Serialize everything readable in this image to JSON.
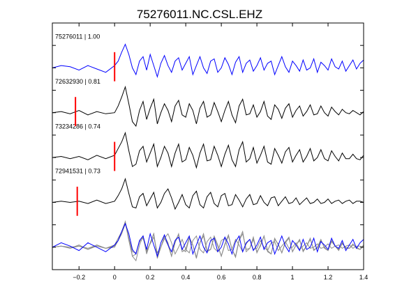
{
  "chart_data": {
    "type": "line",
    "title": "75276011.NC.CSL.EHZ",
    "xlabel": "",
    "ylabel": "",
    "xlim": [
      -0.35,
      1.4
    ],
    "ylim": [
      0,
      11
    ],
    "x_ticks": [
      -0.2,
      0,
      0.2,
      0.4,
      0.6,
      0.8,
      1,
      1.2,
      1.4
    ],
    "x_tick_labels": [
      "−0.2",
      "0",
      "0.2",
      "0.4",
      "0.6",
      "0.8",
      "1",
      "1.2",
      "1.4"
    ],
    "y_ticks": [
      1,
      2,
      3,
      4,
      5,
      6,
      7,
      8,
      9,
      10
    ],
    "grid": false,
    "colors": {
      "reference": "#0000ff",
      "match": "#000000",
      "stack": "#8c8c8c",
      "pick": "#ff0000"
    },
    "series": [
      {
        "label": "75276011 | 1.00",
        "baseline": 9,
        "pick_x": 0.0,
        "x": [
          -0.35,
          -0.3,
          -0.25,
          -0.2,
          -0.15,
          -0.1,
          -0.05,
          0,
          0.02,
          0.04,
          0.06,
          0.08,
          0.1,
          0.12,
          0.14,
          0.16,
          0.18,
          0.2,
          0.22,
          0.24,
          0.26,
          0.28,
          0.3,
          0.32,
          0.34,
          0.36,
          0.38,
          0.4,
          0.42,
          0.44,
          0.46,
          0.48,
          0.5,
          0.52,
          0.54,
          0.56,
          0.58,
          0.6,
          0.62,
          0.64,
          0.66,
          0.68,
          0.7,
          0.72,
          0.74,
          0.76,
          0.78,
          0.8,
          0.82,
          0.84,
          0.86,
          0.88,
          0.9,
          0.92,
          0.94,
          0.96,
          0.98,
          1,
          1.02,
          1.04,
          1.06,
          1.08,
          1.1,
          1.12,
          1.14,
          1.16,
          1.18,
          1.2,
          1.22,
          1.24,
          1.26,
          1.28,
          1.3,
          1.32,
          1.34,
          1.36,
          1.38,
          1.4
        ],
        "y": [
          9,
          9.1,
          9.05,
          8.9,
          9.1,
          8.95,
          8.8,
          9.1,
          9.3,
          9.7,
          10.05,
          9.6,
          9,
          8.7,
          9.3,
          9.5,
          8.9,
          9.6,
          9.1,
          8.6,
          9.2,
          9.55,
          9.1,
          8.8,
          9.3,
          9.45,
          8.9,
          9.2,
          9.5,
          8.7,
          9.1,
          9.5,
          9,
          8.75,
          9.3,
          9.4,
          8.8,
          9,
          9.45,
          9.15,
          8.7,
          9.25,
          9.5,
          8.8,
          9.2,
          9.35,
          8.85,
          9.1,
          9.45,
          8.9,
          9.2,
          9.3,
          8.7,
          9.1,
          9.5,
          9.05,
          8.8,
          9.3,
          9.1,
          8.85,
          9.35,
          8.9,
          9,
          9.4,
          8.8,
          9.25,
          9.1,
          8.9,
          9.4,
          9.05,
          8.95,
          9.3,
          8.85,
          9.1,
          9.35,
          8.95,
          9.2,
          9.35
        ]
      },
      {
        "label": "72632930 | 0.81",
        "baseline": 7,
        "pick_x": -0.22,
        "x": [
          -0.35,
          -0.3,
          -0.25,
          -0.2,
          -0.15,
          -0.1,
          -0.05,
          0,
          0.02,
          0.04,
          0.06,
          0.08,
          0.1,
          0.12,
          0.14,
          0.16,
          0.18,
          0.2,
          0.22,
          0.24,
          0.26,
          0.28,
          0.3,
          0.32,
          0.34,
          0.36,
          0.38,
          0.4,
          0.42,
          0.44,
          0.46,
          0.48,
          0.5,
          0.52,
          0.54,
          0.56,
          0.58,
          0.6,
          0.62,
          0.64,
          0.66,
          0.68,
          0.7,
          0.72,
          0.74,
          0.76,
          0.78,
          0.8,
          0.82,
          0.84,
          0.86,
          0.88,
          0.9,
          0.92,
          0.94,
          0.96,
          0.98,
          1,
          1.02,
          1.04,
          1.06,
          1.08,
          1.1,
          1.12,
          1.14,
          1.16,
          1.18,
          1.2,
          1.22,
          1.24,
          1.26,
          1.28,
          1.3,
          1.32,
          1.34,
          1.36,
          1.38,
          1.4
        ],
        "y": [
          7,
          7.05,
          6.95,
          7.1,
          6.9,
          7.05,
          6.95,
          7,
          7.3,
          7.7,
          8.15,
          7.4,
          6.6,
          6.4,
          7.1,
          7.5,
          6.7,
          7.2,
          7.6,
          6.5,
          7,
          7.4,
          7.1,
          6.6,
          7.3,
          7.55,
          6.9,
          6.8,
          7.4,
          7.1,
          6.5,
          7.2,
          7.5,
          6.8,
          6.9,
          7.45,
          7.05,
          6.6,
          7.1,
          7.5,
          6.9,
          6.55,
          7.3,
          7.6,
          6.9,
          6.95,
          7.35,
          6.8,
          7.05,
          7.5,
          6.85,
          6.7,
          7.35,
          7.15,
          6.75,
          7.2,
          7.4,
          6.8,
          7.1,
          7.3,
          6.85,
          7.05,
          7.35,
          6.9,
          6.95,
          7.3,
          7,
          6.85,
          7.25,
          7.05,
          6.9,
          7.15,
          7,
          6.95,
          7.1,
          7,
          6.9,
          7.05
        ]
      },
      {
        "label": "73234286 | 0.74",
        "baseline": 5,
        "pick_x": 0.0,
        "x": [
          -0.35,
          -0.3,
          -0.25,
          -0.2,
          -0.15,
          -0.1,
          -0.05,
          0,
          0.02,
          0.04,
          0.06,
          0.08,
          0.1,
          0.12,
          0.14,
          0.16,
          0.18,
          0.2,
          0.22,
          0.24,
          0.26,
          0.28,
          0.3,
          0.32,
          0.34,
          0.36,
          0.38,
          0.4,
          0.42,
          0.44,
          0.46,
          0.48,
          0.5,
          0.52,
          0.54,
          0.56,
          0.58,
          0.6,
          0.62,
          0.64,
          0.66,
          0.68,
          0.7,
          0.72,
          0.74,
          0.76,
          0.78,
          0.8,
          0.82,
          0.84,
          0.86,
          0.88,
          0.9,
          0.92,
          0.94,
          0.96,
          0.98,
          1,
          1.02,
          1.04,
          1.06,
          1.08,
          1.1,
          1.12,
          1.14,
          1.16,
          1.18,
          1.2,
          1.22,
          1.24,
          1.26,
          1.28,
          1.3,
          1.32,
          1.34,
          1.36,
          1.38,
          1.4
        ],
        "y": [
          5,
          5.05,
          4.95,
          5.05,
          4.9,
          5.1,
          4.95,
          5.1,
          5.4,
          5.7,
          6.1,
          5.3,
          4.6,
          4.7,
          5.3,
          5.5,
          4.8,
          5.2,
          5.6,
          4.6,
          5,
          5.5,
          5.2,
          4.6,
          5.2,
          5.6,
          4.8,
          4.9,
          5.45,
          5.1,
          4.55,
          5.2,
          5.6,
          4.85,
          4.9,
          5.5,
          5.1,
          4.6,
          5.15,
          5.55,
          4.9,
          4.6,
          5.35,
          5.7,
          4.8,
          4.95,
          5.45,
          4.75,
          5.1,
          5.5,
          4.8,
          4.7,
          5.4,
          5.1,
          4.75,
          5.25,
          5.45,
          4.8,
          5.1,
          5.35,
          4.8,
          5.05,
          5.4,
          4.85,
          5,
          5.35,
          4.95,
          4.85,
          5.3,
          5.05,
          4.85,
          5.2,
          4.95,
          4.95,
          5.15,
          4.95,
          4.9,
          5.1
        ]
      },
      {
        "label": "72941531 | 0.73",
        "baseline": 3,
        "pick_x": -0.21,
        "x": [
          -0.35,
          -0.3,
          -0.25,
          -0.2,
          -0.15,
          -0.1,
          -0.05,
          0,
          0.02,
          0.04,
          0.06,
          0.08,
          0.1,
          0.12,
          0.14,
          0.16,
          0.18,
          0.2,
          0.22,
          0.24,
          0.26,
          0.28,
          0.3,
          0.32,
          0.34,
          0.36,
          0.38,
          0.4,
          0.42,
          0.44,
          0.46,
          0.48,
          0.5,
          0.52,
          0.54,
          0.56,
          0.58,
          0.6,
          0.62,
          0.64,
          0.66,
          0.68,
          0.7,
          0.72,
          0.74,
          0.76,
          0.78,
          0.8,
          0.82,
          0.84,
          0.86,
          0.88,
          0.9,
          0.92,
          0.94,
          0.96,
          0.98,
          1,
          1.02,
          1.04,
          1.06,
          1.08,
          1.1,
          1.12,
          1.14,
          1.16,
          1.18,
          1.2,
          1.22,
          1.24,
          1.26,
          1.28,
          1.3,
          1.32,
          1.34,
          1.36,
          1.38,
          1.4
        ],
        "y": [
          3,
          3.05,
          3,
          3.05,
          2.95,
          3.1,
          2.95,
          3.05,
          3.3,
          3.6,
          4.05,
          3.4,
          2.8,
          2.75,
          3.25,
          3.4,
          2.85,
          3.15,
          3.45,
          2.75,
          3,
          3.4,
          3.6,
          3.2,
          2.7,
          3,
          3.35,
          2.9,
          2.75,
          3.3,
          3.5,
          2.9,
          2.75,
          3.25,
          3.45,
          2.95,
          2.8,
          3.3,
          3.4,
          2.85,
          2.9,
          3.35,
          3.1,
          2.8,
          3.15,
          3.35,
          2.9,
          2.95,
          3.3,
          3,
          2.85,
          3.2,
          3.25,
          2.85,
          3.05,
          3.25,
          2.95,
          3,
          3.2,
          2.9,
          3.05,
          3.2,
          2.95,
          3,
          3.15,
          2.95,
          3,
          3.15,
          2.95,
          3.05,
          3.1,
          2.95,
          3.05,
          3.1,
          2.95,
          3.05,
          3.05,
          3
        ]
      },
      {
        "label": "",
        "baseline": 1,
        "pick_x": null,
        "x": [
          -0.35,
          -0.3,
          -0.25,
          -0.2,
          -0.15,
          -0.1,
          -0.05,
          0,
          0.02,
          0.04,
          0.06,
          0.08,
          0.1,
          0.12,
          0.14,
          0.16,
          0.18,
          0.2,
          0.22,
          0.24,
          0.26,
          0.28,
          0.3,
          0.32,
          0.34,
          0.36,
          0.38,
          0.4,
          0.42,
          0.44,
          0.46,
          0.48,
          0.5,
          0.52,
          0.54,
          0.56,
          0.58,
          0.6,
          0.62,
          0.64,
          0.66,
          0.68,
          0.7,
          0.72,
          0.74,
          0.76,
          0.78,
          0.8,
          0.82,
          0.84,
          0.86,
          0.88,
          0.9,
          0.92,
          0.94,
          0.96,
          0.98,
          1,
          1.02,
          1.04,
          1.06,
          1.08,
          1.1,
          1.12,
          1.14,
          1.16,
          1.18,
          1.2,
          1.22,
          1.24,
          1.26,
          1.28,
          1.3,
          1.32,
          1.34,
          1.36,
          1.38,
          1.4
        ],
        "y": [
          1,
          1.2,
          1.05,
          0.85,
          1.2,
          1,
          0.8,
          1.1,
          1.3,
          1.7,
          2.05,
          1.6,
          0.9,
          0.7,
          1.3,
          1.5,
          0.9,
          1.6,
          1.1,
          0.6,
          1.2,
          1.55,
          1.1,
          0.8,
          1.3,
          1.45,
          0.9,
          1.2,
          1.5,
          0.7,
          1.1,
          1.5,
          1,
          0.75,
          1.3,
          1.4,
          0.8,
          1,
          1.45,
          1.15,
          0.7,
          1.25,
          1.5,
          0.8,
          1.2,
          1.35,
          0.85,
          1.1,
          1.45,
          0.9,
          1.2,
          1.3,
          0.7,
          1.1,
          1.5,
          1.05,
          0.8,
          1.3,
          1.1,
          0.85,
          1.35,
          0.9,
          1,
          1.4,
          0.8,
          1.25,
          1.1,
          0.9,
          1.4,
          1.05,
          0.95,
          1.3,
          0.85,
          1.1,
          1.35,
          0.95,
          1.2,
          1.35
        ]
      }
    ]
  }
}
